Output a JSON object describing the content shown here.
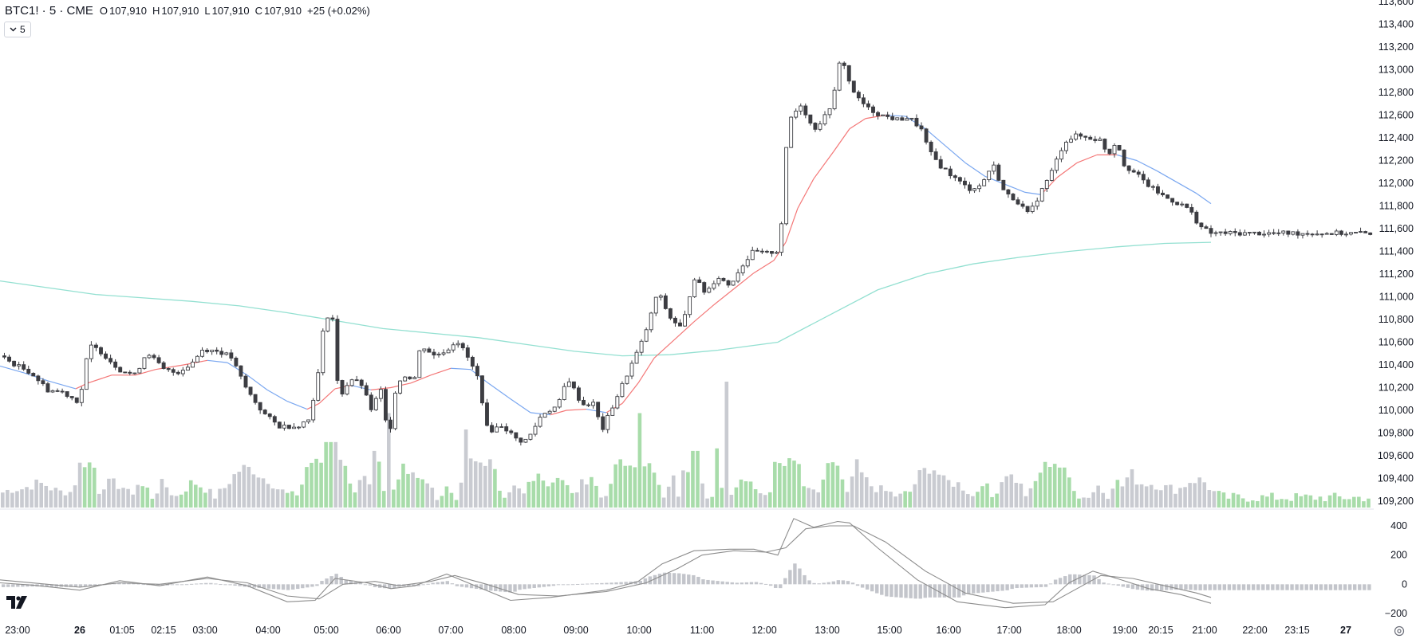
{
  "header": {
    "symbol": "BTC1! · 5 · CME",
    "open_label": "O",
    "open": "107,910",
    "high_label": "H",
    "high": "107,910",
    "low_label": "L",
    "low": "107,910",
    "close_label": "C",
    "close": "107,910",
    "change": "+25 (+0.02%)"
  },
  "indicator_toggle": {
    "label": "5"
  },
  "colors": {
    "up_body": "#ffffff",
    "down_body": "#3c3d42",
    "candle_border": "#3c3d42",
    "ema_fast_up": "#f47777",
    "ema_fast_down": "#7aa7f0",
    "ema_slow": "#93e0d1",
    "vol_up": "#a8dcaa",
    "vol_down": "#c9cbd1",
    "macd_line": "#8c8c8c",
    "macd_hist": "#c3c5cb"
  },
  "chart_data": {
    "type": "candlestick",
    "x_ticks": [
      "23:00",
      "26",
      "01:05",
      "02:15",
      "03:00",
      "04:00",
      "05:00",
      "06:00",
      "07:00",
      "08:00",
      "09:00",
      "10:00",
      "11:00",
      "12:00",
      "13:00",
      "15:00",
      "16:00",
      "17:00",
      "18:00",
      "19:00",
      "20:15",
      "21:00",
      "22:00",
      "23:15",
      "27"
    ],
    "price_axis": {
      "ticks": [
        "113,600",
        "113,400",
        "113,200",
        "113,000",
        "112,800",
        "112,600",
        "112,400",
        "112,200",
        "112,000",
        "111,800",
        "111,600",
        "111,400",
        "111,200",
        "111,000",
        "110,800",
        "110,600",
        "110,400",
        "110,200",
        "110,000",
        "109,800",
        "109,600",
        "109,400",
        "109,200"
      ],
      "range": [
        109200,
        113600
      ]
    },
    "macd_axis": {
      "ticks": [
        "400",
        "200",
        "0",
        "−200"
      ],
      "range": [
        -200,
        400
      ]
    },
    "price_path": [
      [
        0,
        110480
      ],
      [
        20,
        110400
      ],
      [
        40,
        110330
      ],
      [
        60,
        110180
      ],
      [
        80,
        110160
      ],
      [
        100,
        110070
      ],
      [
        112,
        110570
      ],
      [
        125,
        110530
      ],
      [
        150,
        110360
      ],
      [
        170,
        110310
      ],
      [
        185,
        110520
      ],
      [
        205,
        110360
      ],
      [
        222,
        110330
      ],
      [
        240,
        110410
      ],
      [
        255,
        110540
      ],
      [
        275,
        110520
      ],
      [
        290,
        110470
      ],
      [
        310,
        110180
      ],
      [
        330,
        109980
      ],
      [
        350,
        109860
      ],
      [
        372,
        109860
      ],
      [
        388,
        109920
      ],
      [
        400,
        110350
      ],
      [
        408,
        110850
      ],
      [
        418,
        110800
      ],
      [
        425,
        110100
      ],
      [
        440,
        110280
      ],
      [
        455,
        110220
      ],
      [
        465,
        110000
      ],
      [
        480,
        110200
      ],
      [
        487,
        109680
      ],
      [
        495,
        110150
      ],
      [
        505,
        110310
      ],
      [
        520,
        110280
      ],
      [
        528,
        110580
      ],
      [
        545,
        110480
      ],
      [
        565,
        110550
      ],
      [
        572,
        110630
      ],
      [
        585,
        110490
      ],
      [
        600,
        110280
      ],
      [
        612,
        109810
      ],
      [
        630,
        109870
      ],
      [
        650,
        109730
      ],
      [
        662,
        109740
      ],
      [
        680,
        109970
      ],
      [
        700,
        110040
      ],
      [
        712,
        110290
      ],
      [
        730,
        110050
      ],
      [
        745,
        110060
      ],
      [
        755,
        109820
      ],
      [
        770,
        110060
      ],
      [
        790,
        110370
      ],
      [
        805,
        110600
      ],
      [
        815,
        110800
      ],
      [
        825,
        111050
      ],
      [
        840,
        110820
      ],
      [
        855,
        110720
      ],
      [
        862,
        110910
      ],
      [
        870,
        111180
      ],
      [
        885,
        111030
      ],
      [
        900,
        111180
      ],
      [
        915,
        111100
      ],
      [
        930,
        111270
      ],
      [
        945,
        111400
      ],
      [
        960,
        111380
      ],
      [
        978,
        111410
      ],
      [
        985,
        112220
      ],
      [
        990,
        112560
      ],
      [
        1005,
        112700
      ],
      [
        1020,
        112470
      ],
      [
        1035,
        112590
      ],
      [
        1045,
        112740
      ],
      [
        1055,
        113140
      ],
      [
        1065,
        112890
      ],
      [
        1075,
        112750
      ],
      [
        1090,
        112650
      ],
      [
        1105,
        112600
      ],
      [
        1125,
        112560
      ],
      [
        1140,
        112580
      ],
      [
        1155,
        112480
      ],
      [
        1165,
        112280
      ],
      [
        1180,
        112150
      ],
      [
        1200,
        112030
      ],
      [
        1215,
        111950
      ],
      [
        1230,
        111980
      ],
      [
        1245,
        112170
      ],
      [
        1260,
        111910
      ],
      [
        1275,
        111850
      ],
      [
        1290,
        111720
      ],
      [
        1305,
        111920
      ],
      [
        1320,
        112120
      ],
      [
        1335,
        112370
      ],
      [
        1350,
        112420
      ],
      [
        1365,
        112400
      ],
      [
        1380,
        112380
      ],
      [
        1390,
        112250
      ],
      [
        1400,
        112380
      ],
      [
        1410,
        112160
      ],
      [
        1425,
        112080
      ],
      [
        1440,
        111980
      ],
      [
        1460,
        111880
      ],
      [
        1475,
        111830
      ],
      [
        1490,
        111780
      ],
      [
        1505,
        111620
      ],
      [
        1518,
        111560
      ]
    ],
    "ema_fast": [
      [
        0,
        110390
      ],
      [
        30,
        110330
      ],
      [
        60,
        110260
      ],
      [
        95,
        110190
      ],
      [
        110,
        110240
      ],
      [
        140,
        110310
      ],
      [
        170,
        110310
      ],
      [
        195,
        110360
      ],
      [
        230,
        110400
      ],
      [
        260,
        110440
      ],
      [
        285,
        110420
      ],
      [
        310,
        110310
      ],
      [
        335,
        110180
      ],
      [
        360,
        110080
      ],
      [
        385,
        110010
      ],
      [
        400,
        110060
      ],
      [
        420,
        110190
      ],
      [
        440,
        110220
      ],
      [
        465,
        110180
      ],
      [
        490,
        110200
      ],
      [
        515,
        110240
      ],
      [
        540,
        110310
      ],
      [
        565,
        110370
      ],
      [
        590,
        110360
      ],
      [
        610,
        110250
      ],
      [
        640,
        110100
      ],
      [
        665,
        109980
      ],
      [
        690,
        109960
      ],
      [
        710,
        110000
      ],
      [
        735,
        110010
      ],
      [
        760,
        109980
      ],
      [
        780,
        110060
      ],
      [
        800,
        110240
      ],
      [
        820,
        110460
      ],
      [
        845,
        110620
      ],
      [
        870,
        110780
      ],
      [
        895,
        110930
      ],
      [
        920,
        111070
      ],
      [
        945,
        111210
      ],
      [
        970,
        111320
      ],
      [
        985,
        111480
      ],
      [
        1000,
        111780
      ],
      [
        1020,
        112040
      ],
      [
        1045,
        112280
      ],
      [
        1065,
        112480
      ],
      [
        1085,
        112570
      ],
      [
        1110,
        112600
      ],
      [
        1135,
        112590
      ],
      [
        1160,
        112480
      ],
      [
        1185,
        112330
      ],
      [
        1210,
        112180
      ],
      [
        1235,
        112060
      ],
      [
        1260,
        111990
      ],
      [
        1285,
        111920
      ],
      [
        1305,
        111900
      ],
      [
        1325,
        112050
      ],
      [
        1350,
        112180
      ],
      [
        1375,
        112250
      ],
      [
        1400,
        112250
      ],
      [
        1425,
        112200
      ],
      [
        1450,
        112110
      ],
      [
        1475,
        112010
      ],
      [
        1500,
        111910
      ],
      [
        1518,
        111820
      ]
    ],
    "ema_slow": [
      [
        0,
        111140
      ],
      [
        60,
        111080
      ],
      [
        120,
        111020
      ],
      [
        180,
        110990
      ],
      [
        240,
        110960
      ],
      [
        300,
        110920
      ],
      [
        360,
        110860
      ],
      [
        420,
        110790
      ],
      [
        480,
        110720
      ],
      [
        540,
        110680
      ],
      [
        600,
        110640
      ],
      [
        660,
        110580
      ],
      [
        720,
        110520
      ],
      [
        780,
        110480
      ],
      [
        840,
        110490
      ],
      [
        900,
        110530
      ],
      [
        975,
        110600
      ],
      [
        1040,
        110840
      ],
      [
        1100,
        111060
      ],
      [
        1160,
        111200
      ],
      [
        1220,
        111290
      ],
      [
        1280,
        111350
      ],
      [
        1340,
        111400
      ],
      [
        1400,
        111440
      ],
      [
        1460,
        111470
      ],
      [
        1518,
        111480
      ]
    ],
    "volume": {
      "spikes": [
        [
          405,
          0.52
        ],
        [
          416,
          0.52
        ],
        [
          465,
          0.45
        ],
        [
          487,
          0.75
        ],
        [
          580,
          0.62
        ],
        [
          800,
          0.75
        ],
        [
          870,
          0.45
        ],
        [
          897,
          0.47
        ],
        [
          907,
          1.0
        ]
      ]
    },
    "macd_path": [
      [
        0,
        10
      ],
      [
        40,
        -5
      ],
      [
        100,
        -40
      ],
      [
        150,
        25
      ],
      [
        200,
        -10
      ],
      [
        260,
        50
      ],
      [
        310,
        -10
      ],
      [
        360,
        -120
      ],
      [
        395,
        -110
      ],
      [
        420,
        40
      ],
      [
        460,
        10
      ],
      [
        490,
        -30
      ],
      [
        520,
        -10
      ],
      [
        560,
        70
      ],
      [
        600,
        -20
      ],
      [
        640,
        -110
      ],
      [
        690,
        -90
      ],
      [
        760,
        -40
      ],
      [
        800,
        20
      ],
      [
        830,
        140
      ],
      [
        870,
        230
      ],
      [
        915,
        240
      ],
      [
        945,
        240
      ],
      [
        975,
        200
      ],
      [
        995,
        450
      ],
      [
        1020,
        390
      ],
      [
        1050,
        430
      ],
      [
        1065,
        420
      ],
      [
        1100,
        250
      ],
      [
        1150,
        30
      ],
      [
        1200,
        -120
      ],
      [
        1260,
        -160
      ],
      [
        1310,
        -140
      ],
      [
        1340,
        10
      ],
      [
        1370,
        90
      ],
      [
        1400,
        40
      ],
      [
        1440,
        -30
      ],
      [
        1480,
        -70
      ],
      [
        1518,
        -130
      ]
    ],
    "signal_path": [
      [
        0,
        30
      ],
      [
        50,
        5
      ],
      [
        100,
        -20
      ],
      [
        150,
        10
      ],
      [
        200,
        0
      ],
      [
        260,
        40
      ],
      [
        310,
        10
      ],
      [
        360,
        -80
      ],
      [
        400,
        -100
      ],
      [
        430,
        0
      ],
      [
        470,
        20
      ],
      [
        500,
        -10
      ],
      [
        540,
        20
      ],
      [
        570,
        60
      ],
      [
        610,
        0
      ],
      [
        650,
        -70
      ],
      [
        700,
        -80
      ],
      [
        760,
        -50
      ],
      [
        810,
        10
      ],
      [
        850,
        110
      ],
      [
        880,
        200
      ],
      [
        920,
        230
      ],
      [
        960,
        220
      ],
      [
        985,
        250
      ],
      [
        1010,
        380
      ],
      [
        1040,
        400
      ],
      [
        1070,
        400
      ],
      [
        1110,
        290
      ],
      [
        1160,
        90
      ],
      [
        1210,
        -60
      ],
      [
        1270,
        -130
      ],
      [
        1320,
        -120
      ],
      [
        1350,
        -30
      ],
      [
        1380,
        60
      ],
      [
        1420,
        40
      ],
      [
        1460,
        -10
      ],
      [
        1500,
        -60
      ],
      [
        1518,
        -90
      ]
    ]
  }
}
